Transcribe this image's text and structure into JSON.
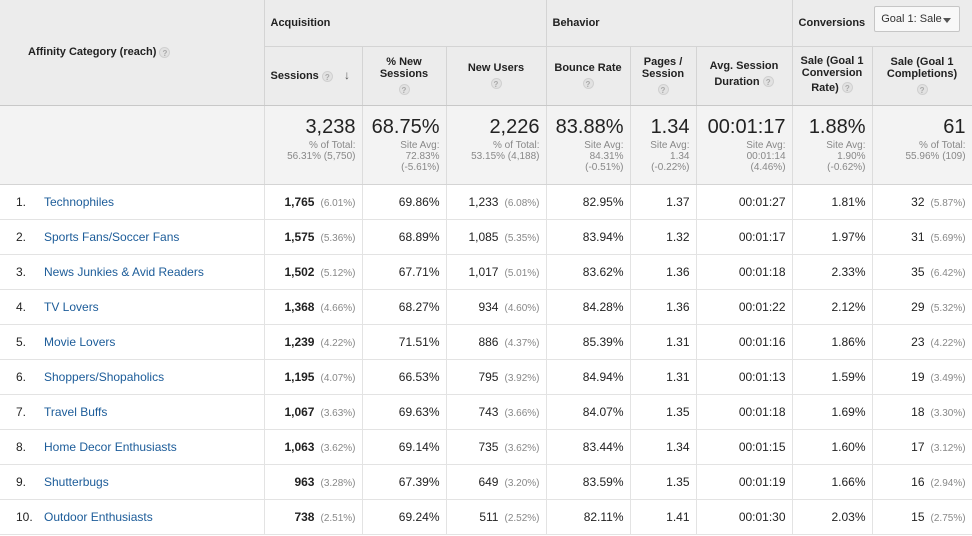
{
  "header": {
    "category_label": "Affinity Category (reach)",
    "groups": {
      "acquisition": "Acquisition",
      "behavior": "Behavior",
      "conversions": "Conversions"
    },
    "goal_select": "Goal 1: Sale",
    "columns": {
      "sessions": "Sessions",
      "new_sessions_1": "% New",
      "new_sessions_2": "Sessions",
      "new_users": "New Users",
      "bounce_rate": "Bounce Rate",
      "pages_1": "Pages /",
      "pages_2": "Session",
      "duration_1": "Avg. Session",
      "duration_2": "Duration",
      "conv_rate_1": "Sale (Goal 1",
      "conv_rate_2": "Conversion",
      "conv_rate_3": "Rate)",
      "completions_1": "Sale (Goal 1",
      "completions_2": "Completions)"
    }
  },
  "totals": {
    "sessions": {
      "value": "3,238",
      "l1": "% of Total:",
      "l2": "56.31% (5,750)"
    },
    "new_sessions": {
      "value": "68.75%",
      "l1": "Site Avg:",
      "l2": "72.83%",
      "l3": "(-5.61%)"
    },
    "new_users": {
      "value": "2,226",
      "l1": "% of Total:",
      "l2": "53.15% (4,188)"
    },
    "bounce_rate": {
      "value": "83.88%",
      "l1": "Site Avg:",
      "l2": "84.31%",
      "l3": "(-0.51%)"
    },
    "pages": {
      "value": "1.34",
      "l1": "Site Avg:",
      "l2": "1.34",
      "l3": "(-0.22%)"
    },
    "duration": {
      "value": "00:01:17",
      "l1": "Site Avg:",
      "l2": "00:01:14",
      "l3": "(4.46%)"
    },
    "conv_rate": {
      "value": "1.88%",
      "l1": "Site Avg:",
      "l2": "1.90%",
      "l3": "(-0.62%)"
    },
    "completions": {
      "value": "61",
      "l1": "% of Total:",
      "l2": "55.96% (109)"
    }
  },
  "rows": [
    {
      "idx": "1.",
      "name": "Technophiles",
      "sessions": "1,765",
      "sessions_pct": "(6.01%)",
      "new_sessions": "69.86%",
      "new_users": "1,233",
      "new_users_pct": "(6.08%)",
      "bounce": "82.95%",
      "pages": "1.37",
      "duration": "00:01:27",
      "conv": "1.81%",
      "comp": "32",
      "comp_pct": "(5.87%)"
    },
    {
      "idx": "2.",
      "name": "Sports Fans/Soccer Fans",
      "sessions": "1,575",
      "sessions_pct": "(5.36%)",
      "new_sessions": "68.89%",
      "new_users": "1,085",
      "new_users_pct": "(5.35%)",
      "bounce": "83.94%",
      "pages": "1.32",
      "duration": "00:01:17",
      "conv": "1.97%",
      "comp": "31",
      "comp_pct": "(5.69%)"
    },
    {
      "idx": "3.",
      "name": "News Junkies & Avid Readers",
      "sessions": "1,502",
      "sessions_pct": "(5.12%)",
      "new_sessions": "67.71%",
      "new_users": "1,017",
      "new_users_pct": "(5.01%)",
      "bounce": "83.62%",
      "pages": "1.36",
      "duration": "00:01:18",
      "conv": "2.33%",
      "comp": "35",
      "comp_pct": "(6.42%)"
    },
    {
      "idx": "4.",
      "name": "TV Lovers",
      "sessions": "1,368",
      "sessions_pct": "(4.66%)",
      "new_sessions": "68.27%",
      "new_users": "934",
      "new_users_pct": "(4.60%)",
      "bounce": "84.28%",
      "pages": "1.36",
      "duration": "00:01:22",
      "conv": "2.12%",
      "comp": "29",
      "comp_pct": "(5.32%)"
    },
    {
      "idx": "5.",
      "name": "Movie Lovers",
      "sessions": "1,239",
      "sessions_pct": "(4.22%)",
      "new_sessions": "71.51%",
      "new_users": "886",
      "new_users_pct": "(4.37%)",
      "bounce": "85.39%",
      "pages": "1.31",
      "duration": "00:01:16",
      "conv": "1.86%",
      "comp": "23",
      "comp_pct": "(4.22%)"
    },
    {
      "idx": "6.",
      "name": "Shoppers/Shopaholics",
      "sessions": "1,195",
      "sessions_pct": "(4.07%)",
      "new_sessions": "66.53%",
      "new_users": "795",
      "new_users_pct": "(3.92%)",
      "bounce": "84.94%",
      "pages": "1.31",
      "duration": "00:01:13",
      "conv": "1.59%",
      "comp": "19",
      "comp_pct": "(3.49%)"
    },
    {
      "idx": "7.",
      "name": "Travel Buffs",
      "sessions": "1,067",
      "sessions_pct": "(3.63%)",
      "new_sessions": "69.63%",
      "new_users": "743",
      "new_users_pct": "(3.66%)",
      "bounce": "84.07%",
      "pages": "1.35",
      "duration": "00:01:18",
      "conv": "1.69%",
      "comp": "18",
      "comp_pct": "(3.30%)"
    },
    {
      "idx": "8.",
      "name": "Home Decor Enthusiasts",
      "sessions": "1,063",
      "sessions_pct": "(3.62%)",
      "new_sessions": "69.14%",
      "new_users": "735",
      "new_users_pct": "(3.62%)",
      "bounce": "83.44%",
      "pages": "1.34",
      "duration": "00:01:15",
      "conv": "1.60%",
      "comp": "17",
      "comp_pct": "(3.12%)"
    },
    {
      "idx": "9.",
      "name": "Shutterbugs",
      "sessions": "963",
      "sessions_pct": "(3.28%)",
      "new_sessions": "67.39%",
      "new_users": "649",
      "new_users_pct": "(3.20%)",
      "bounce": "83.59%",
      "pages": "1.35",
      "duration": "00:01:19",
      "conv": "1.66%",
      "comp": "16",
      "comp_pct": "(2.94%)"
    },
    {
      "idx": "10.",
      "name": "Outdoor Enthusiasts",
      "sessions": "738",
      "sessions_pct": "(2.51%)",
      "new_sessions": "69.24%",
      "new_users": "511",
      "new_users_pct": "(2.52%)",
      "bounce": "82.11%",
      "pages": "1.41",
      "duration": "00:01:30",
      "conv": "2.03%",
      "comp": "15",
      "comp_pct": "(2.75%)"
    }
  ]
}
